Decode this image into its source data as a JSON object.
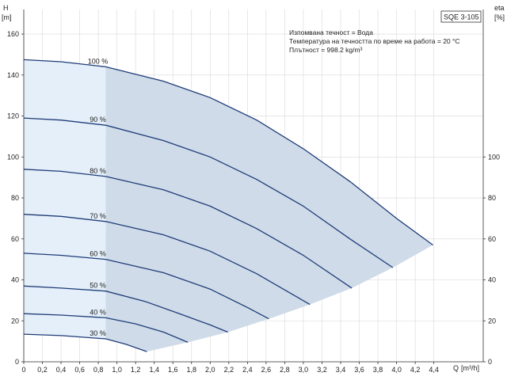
{
  "chart_data": {
    "type": "line",
    "title": "SQE 3-105",
    "info_lines": [
      "Изпомвана течност = Вода",
      "Температура на течността по време на работа = 20 °C",
      "Плътност = 998.2 kg/m³"
    ],
    "ylabel": "H",
    "yunit": "[m]",
    "y2label": "eta",
    "y2unit": "[%]",
    "xlabel": "Q",
    "xunit": "[m³/h]",
    "xlim": [
      0,
      4.93
    ],
    "ylim": [
      0,
      172
    ],
    "y2lim": [
      0,
      172
    ],
    "x_ticks": [
      "0",
      "0,2",
      "0,4",
      "0,6",
      "0,8",
      "1,0",
      "1,2",
      "1,4",
      "1,6",
      "1,8",
      "2,0",
      "2,2",
      "2,4",
      "2,6",
      "2,8",
      "3,0",
      "3,2",
      "3,4",
      "3,6",
      "3,8",
      "4,0",
      "4,2",
      "4,4"
    ],
    "y_ticks": [
      0,
      20,
      40,
      60,
      80,
      100,
      120,
      140,
      160
    ],
    "y2_ticks": [
      0,
      20,
      40,
      60,
      80,
      100
    ],
    "grid": true,
    "min_flow_band": [
      0,
      0.88
    ],
    "series": [
      {
        "name": "100 %",
        "x": [
          0,
          0.4,
          0.88,
          1.5,
          2.0,
          2.5,
          3.0,
          3.5,
          4.0,
          4.39
        ],
        "y": [
          147.5,
          146.5,
          144,
          137,
          129,
          118,
          104,
          88,
          70,
          57
        ]
      },
      {
        "name": "90 %",
        "x": [
          0,
          0.4,
          0.88,
          1.5,
          2.0,
          2.5,
          3.0,
          3.5,
          3.96
        ],
        "y": [
          119,
          118,
          115.5,
          108,
          100,
          89,
          76,
          60,
          46
        ]
      },
      {
        "name": "80 %",
        "x": [
          0,
          0.4,
          0.88,
          1.5,
          2.0,
          2.5,
          3.0,
          3.52
        ],
        "y": [
          94,
          93,
          90.5,
          84,
          76,
          65,
          52,
          36
        ]
      },
      {
        "name": "70 %",
        "x": [
          0,
          0.4,
          0.88,
          1.5,
          2.0,
          2.5,
          3.07
        ],
        "y": [
          72,
          71,
          68.5,
          62,
          54,
          43,
          28
        ]
      },
      {
        "name": "60 %",
        "x": [
          0,
          0.4,
          0.88,
          1.5,
          2.0,
          2.4,
          2.63
        ],
        "y": [
          53,
          52,
          50,
          43.5,
          35.5,
          26.5,
          21
        ]
      },
      {
        "name": "50 %",
        "x": [
          0,
          0.4,
          0.88,
          1.3,
          1.7,
          2.0,
          2.19
        ],
        "y": [
          37,
          36,
          34.5,
          29.5,
          23,
          18,
          14.5
        ]
      },
      {
        "name": "40 %",
        "x": [
          0,
          0.4,
          0.88,
          1.2,
          1.5,
          1.76
        ],
        "y": [
          23.5,
          22.8,
          21.5,
          18.5,
          14.5,
          9.5
        ]
      },
      {
        "name": "30 %",
        "x": [
          0,
          0.4,
          0.88,
          1.1,
          1.32
        ],
        "y": [
          13.5,
          12.8,
          11.2,
          8.5,
          5
        ]
      }
    ]
  }
}
